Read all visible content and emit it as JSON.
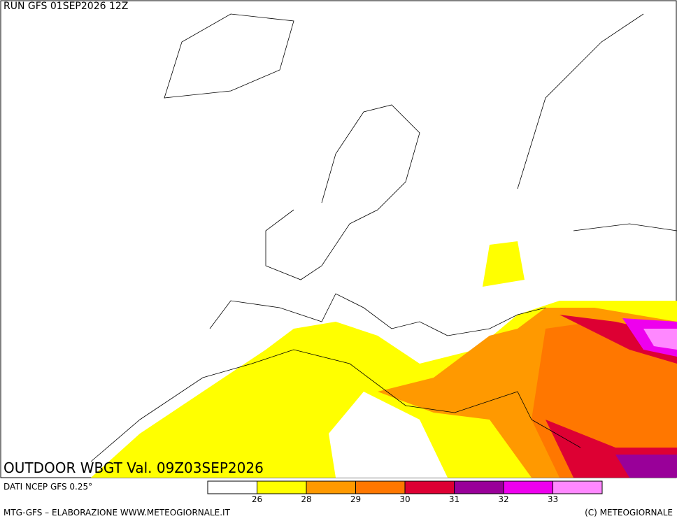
{
  "header": {
    "run": "RUN GFS 01SEP2026 12Z"
  },
  "map": {
    "title": "OUTDOOR WBGT Val. 09Z03SEP2026"
  },
  "legend": {
    "source": "DATI NCEP GFS 0.25°",
    "colors": [
      "#ffffff",
      "#ffff00",
      "#ff9900",
      "#ff7700",
      "#dd0033",
      "#990099",
      "#ee00ee",
      "#ff88ff"
    ],
    "thresholds": [
      26,
      28,
      29,
      30,
      31,
      32,
      33
    ]
  },
  "footer": {
    "left": "MTG-GFS – ELABORAZIONE WWW.METEOGIORNALE.IT",
    "right": "(C) METEOGIORNALE"
  }
}
